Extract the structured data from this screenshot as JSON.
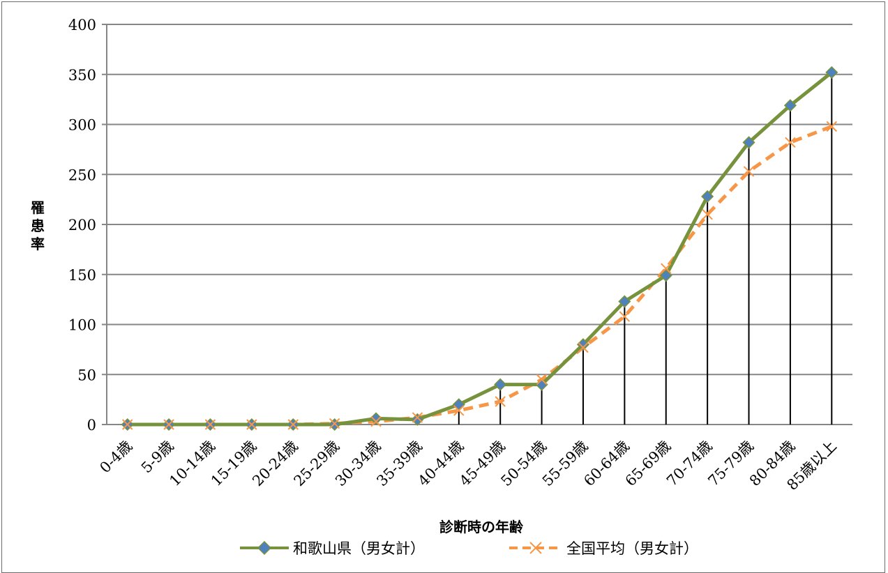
{
  "chart_data": {
    "type": "line",
    "xlabel": "診断時の年齢",
    "ylabel": "罹患率",
    "ylim": [
      0,
      400
    ],
    "yticks": [
      0,
      50,
      100,
      150,
      200,
      250,
      300,
      350,
      400
    ],
    "grid": true,
    "legend_position": "bottom",
    "categories": [
      "0-4歳",
      "5-9歳",
      "10-14歳",
      "15-19歳",
      "20-24歳",
      "25-29歳",
      "30-34歳",
      "35-39歳",
      "40-44歳",
      "45-49歳",
      "50-54歳",
      "55-59歳",
      "60-64歳",
      "65-69歳",
      "70-74歳",
      "75-79歳",
      "80-84歳",
      "85歳以上"
    ],
    "series": [
      {
        "name": "和歌山県（男女計）",
        "color": "#76923c",
        "marker_color": "#4f81bd",
        "marker": "diamond",
        "style": "solid",
        "values": [
          0,
          0,
          0,
          0,
          0,
          0,
          6,
          5,
          20,
          40,
          40,
          80,
          123,
          149,
          228,
          282,
          319,
          352
        ]
      },
      {
        "name": "全国平均（男女計）",
        "color": "#f79646",
        "marker": "x",
        "style": "dashed",
        "values": [
          0,
          0,
          0,
          0,
          0,
          1,
          3,
          7,
          14,
          23,
          45,
          77,
          108,
          156,
          210,
          253,
          282,
          298
        ]
      }
    ]
  }
}
